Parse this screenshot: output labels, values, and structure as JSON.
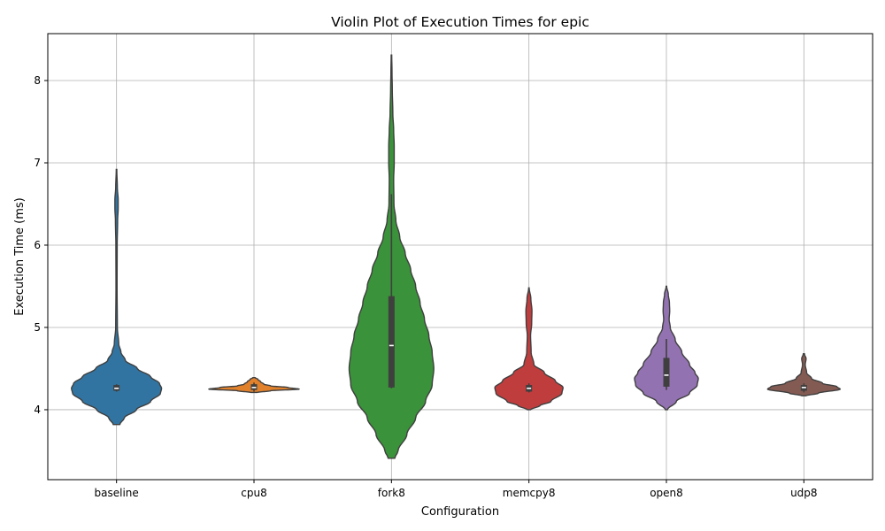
{
  "chart_data": {
    "type": "violin",
    "title": "Violin Plot of Execution Times for epic",
    "xlabel": "Configuration",
    "ylabel": "Execution Time (ms)",
    "ylim": [
      3.15,
      8.57
    ],
    "yticks": [
      4,
      5,
      6,
      7,
      8
    ],
    "grid": true,
    "categories": [
      "baseline",
      "cpu8",
      "fork8",
      "memcpy8",
      "open8",
      "udp8"
    ],
    "colors": [
      "#3274a1",
      "#e1812c",
      "#3a923a",
      "#c03d3e",
      "#9372b2",
      "#845b53"
    ],
    "series": [
      {
        "category": "baseline",
        "median": 4.26,
        "q1": 4.23,
        "q3": 4.3,
        "whisker_low": 4.22,
        "whisker_high": 4.31,
        "profile": [
          [
            3.82,
            0.06
          ],
          [
            3.9,
            0.14
          ],
          [
            4.0,
            0.36
          ],
          [
            4.1,
            0.62
          ],
          [
            4.2,
            0.8
          ],
          [
            4.26,
            0.82
          ],
          [
            4.32,
            0.78
          ],
          [
            4.4,
            0.62
          ],
          [
            4.5,
            0.38
          ],
          [
            4.6,
            0.16
          ],
          [
            4.7,
            0.08
          ],
          [
            4.8,
            0.04
          ],
          [
            5.0,
            0.015
          ],
          [
            5.5,
            0.01
          ],
          [
            6.0,
            0.012
          ],
          [
            6.3,
            0.02
          ],
          [
            6.45,
            0.03
          ],
          [
            6.55,
            0.03
          ],
          [
            6.7,
            0.015
          ],
          [
            6.92,
            0.005
          ]
        ]
      },
      {
        "category": "cpu8",
        "median": 4.27,
        "q1": 4.24,
        "q3": 4.31,
        "whisker_low": 4.22,
        "whisker_high": 4.33,
        "profile": [
          [
            4.21,
            0.06
          ],
          [
            4.23,
            0.3
          ],
          [
            4.25,
            0.82
          ],
          [
            4.27,
            0.62
          ],
          [
            4.29,
            0.3
          ],
          [
            4.31,
            0.18
          ],
          [
            4.34,
            0.12
          ],
          [
            4.37,
            0.07
          ],
          [
            4.39,
            0.02
          ]
        ]
      },
      {
        "category": "fork8",
        "median": 4.78,
        "q1": 4.27,
        "q3": 5.38,
        "whisker_low": 4.26,
        "whisker_high": 6.62,
        "profile": [
          [
            3.41,
            0.06
          ],
          [
            3.5,
            0.12
          ],
          [
            3.7,
            0.28
          ],
          [
            3.9,
            0.44
          ],
          [
            4.1,
            0.62
          ],
          [
            4.3,
            0.74
          ],
          [
            4.5,
            0.77
          ],
          [
            4.7,
            0.74
          ],
          [
            4.9,
            0.68
          ],
          [
            5.1,
            0.6
          ],
          [
            5.3,
            0.52
          ],
          [
            5.5,
            0.44
          ],
          [
            5.7,
            0.35
          ],
          [
            5.9,
            0.25
          ],
          [
            6.1,
            0.15
          ],
          [
            6.3,
            0.08
          ],
          [
            6.5,
            0.045
          ],
          [
            6.8,
            0.04
          ],
          [
            7.0,
            0.05
          ],
          [
            7.2,
            0.05
          ],
          [
            7.4,
            0.04
          ],
          [
            7.6,
            0.025
          ],
          [
            7.9,
            0.015
          ],
          [
            8.1,
            0.01
          ],
          [
            8.31,
            0.005
          ]
        ]
      },
      {
        "category": "memcpy8",
        "median": 4.26,
        "q1": 4.22,
        "q3": 4.3,
        "whisker_low": 4.21,
        "whisker_high": 4.32,
        "profile": [
          [
            4.0,
            0.03
          ],
          [
            4.05,
            0.2
          ],
          [
            4.1,
            0.4
          ],
          [
            4.2,
            0.6
          ],
          [
            4.27,
            0.62
          ],
          [
            4.35,
            0.48
          ],
          [
            4.45,
            0.28
          ],
          [
            4.55,
            0.09
          ],
          [
            4.7,
            0.04
          ],
          [
            4.9,
            0.03
          ],
          [
            5.05,
            0.05
          ],
          [
            5.2,
            0.055
          ],
          [
            5.35,
            0.035
          ],
          [
            5.48,
            0.005
          ]
        ]
      },
      {
        "category": "open8",
        "median": 4.42,
        "q1": 4.28,
        "q3": 4.63,
        "whisker_low": 4.24,
        "whisker_high": 4.86,
        "profile": [
          [
            4.0,
            0.02
          ],
          [
            4.1,
            0.18
          ],
          [
            4.2,
            0.42
          ],
          [
            4.3,
            0.56
          ],
          [
            4.38,
            0.58
          ],
          [
            4.45,
            0.52
          ],
          [
            4.55,
            0.42
          ],
          [
            4.7,
            0.28
          ],
          [
            4.85,
            0.16
          ],
          [
            5.0,
            0.07
          ],
          [
            5.1,
            0.05
          ],
          [
            5.2,
            0.06
          ],
          [
            5.3,
            0.055
          ],
          [
            5.4,
            0.035
          ],
          [
            5.5,
            0.005
          ]
        ]
      },
      {
        "category": "udp8",
        "median": 4.27,
        "q1": 4.23,
        "q3": 4.3,
        "whisker_low": 4.21,
        "whisker_high": 4.32,
        "profile": [
          [
            4.17,
            0.04
          ],
          [
            4.2,
            0.26
          ],
          [
            4.25,
            0.66
          ],
          [
            4.28,
            0.6
          ],
          [
            4.32,
            0.34
          ],
          [
            4.38,
            0.14
          ],
          [
            4.45,
            0.05
          ],
          [
            4.55,
            0.025
          ],
          [
            4.62,
            0.04
          ],
          [
            4.68,
            0.01
          ]
        ]
      }
    ]
  }
}
